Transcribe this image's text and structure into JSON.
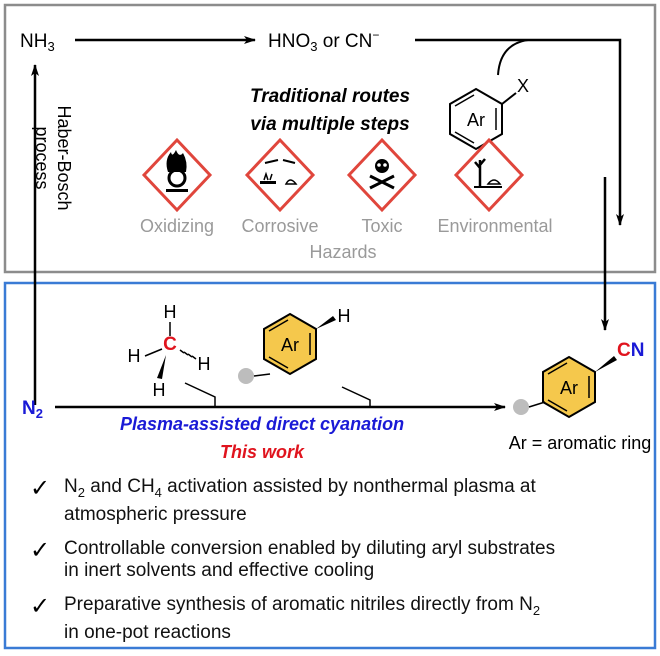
{
  "traditional": {
    "nh3": "NH3",
    "hno3_or_cn": "HNO3 or CN−",
    "route_title_line1": "Traditional routes",
    "route_title_line2": "via multiple steps",
    "aryl_halide_ring": "Ar",
    "aryl_halide_x": "X",
    "haber_line1": "Haber-Bosch",
    "haber_line2": "process",
    "hazards": [
      {
        "label": "Oxidizing",
        "icon": "flame-over-circle-icon"
      },
      {
        "label": "Corrosive",
        "icon": "corrosion-icon"
      },
      {
        "label": "Toxic",
        "icon": "skull-crossbones-icon"
      },
      {
        "label": "Environmental",
        "icon": "dead-tree-fish-icon"
      }
    ],
    "hazards_title": "Hazards"
  },
  "this_work": {
    "n2": "N2",
    "methane_h": "H",
    "methane_c": "C",
    "arene_ring": "Ar",
    "arene_h": "H",
    "process_label": "Plasma-assisted direct cyanation",
    "this_work_label": "This work",
    "product_ring": "Ar",
    "product_cn": "CN",
    "ar_definition": "Ar = aromatic ring"
  },
  "bullets": [
    {
      "line1": "N2 and CH4 activation assisted by nonthermal plasma at",
      "line2": "atmospheric pressure"
    },
    {
      "line1": "Controllable conversion enabled by diluting aryl substrates",
      "line2": "in inert solvents and effective cooling"
    },
    {
      "line1": "Preparative synthesis of aromatic nitriles directly from N2",
      "line2": "in one-pot reactions"
    }
  ],
  "colors": {
    "gray_box": "#8c8c8c",
    "blue_box": "#3a7bd5",
    "blue_text": "#1a1ad6",
    "red_text": "#e0141e",
    "ring_fill": "#f5c84c",
    "hazard_red": "#e0463c",
    "hazard_label": "#9a9a9a"
  }
}
